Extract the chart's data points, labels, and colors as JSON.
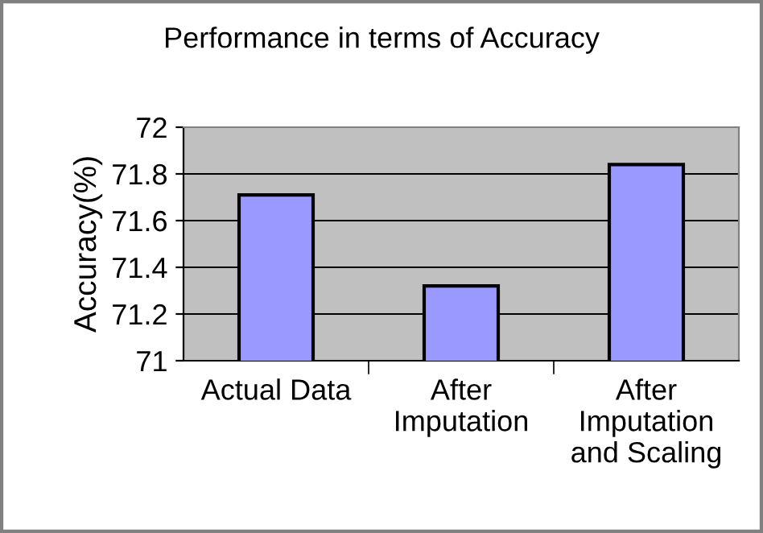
{
  "chart_data": {
    "type": "bar",
    "title": "Performance in terms of Accuracy",
    "ylabel": "Accuracy(%)",
    "categories": [
      "Actual Data",
      "After\nImputation",
      "After\nImputation\nand Scaling"
    ],
    "values": [
      71.71,
      71.32,
      71.84
    ],
    "color": "#9999ff",
    "ylim": [
      71,
      72
    ],
    "yticks": [
      71,
      71.2,
      71.4,
      71.6,
      71.8,
      72
    ],
    "grid": "y",
    "legend": false
  }
}
